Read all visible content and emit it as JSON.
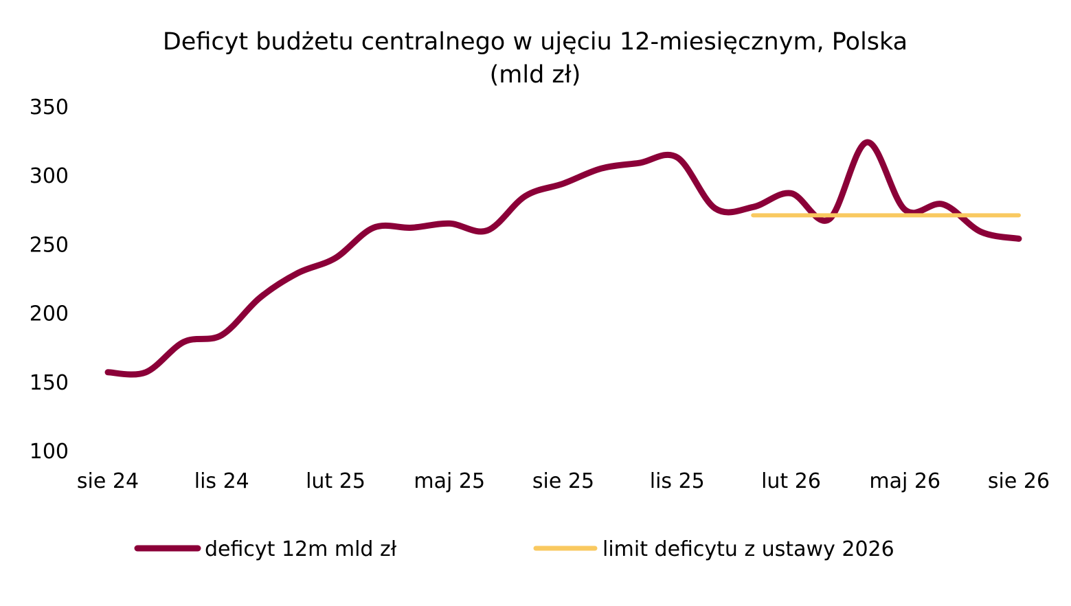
{
  "chart_data": {
    "type": "line",
    "title": "Deficyt budżetu centralnego w ujęciu 12-miesięcznym, Polska",
    "subtitle": "(mld zł)",
    "xlabel": "",
    "ylabel": "",
    "ylim": [
      100,
      350
    ],
    "yticks": [
      "100",
      "150",
      "200",
      "250",
      "300",
      "350"
    ],
    "grid": false,
    "legend_position": "bottom",
    "x": [
      "sie 24",
      "wrz 24",
      "paź 24",
      "lis 24",
      "gru 24",
      "sty 25",
      "lut 25",
      "mar 25",
      "kwi 25",
      "maj 25",
      "cze 25",
      "lip 25",
      "sie 25",
      "wrz 25",
      "paź 25",
      "lis 25",
      "gru 25",
      "sty 26",
      "lut 26",
      "mar 26",
      "kwi 26",
      "maj 26",
      "cze 26",
      "lip 26",
      "sie 26"
    ],
    "xticks": [
      "sie 24",
      "lis 24",
      "lut 25",
      "maj 25",
      "sie 25",
      "lis 25",
      "lut 26",
      "maj 26",
      "sie 26"
    ],
    "series": [
      {
        "name": "deficyt 12m mld zł",
        "color": "#8B0038",
        "values": [
          157,
          157,
          179,
          184,
          211,
          229,
          240,
          262,
          262,
          265,
          260,
          285,
          294,
          305,
          309,
          313,
          276,
          277,
          287,
          268,
          324,
          275,
          279,
          259,
          254
        ]
      },
      {
        "name": "limit deficytu z ustawy 2026",
        "color": "#F9C960",
        "values": [
          null,
          null,
          null,
          null,
          null,
          null,
          null,
          null,
          null,
          null,
          null,
          null,
          null,
          null,
          null,
          null,
          null,
          271,
          271,
          271,
          271,
          271,
          271,
          271,
          271
        ]
      }
    ]
  }
}
